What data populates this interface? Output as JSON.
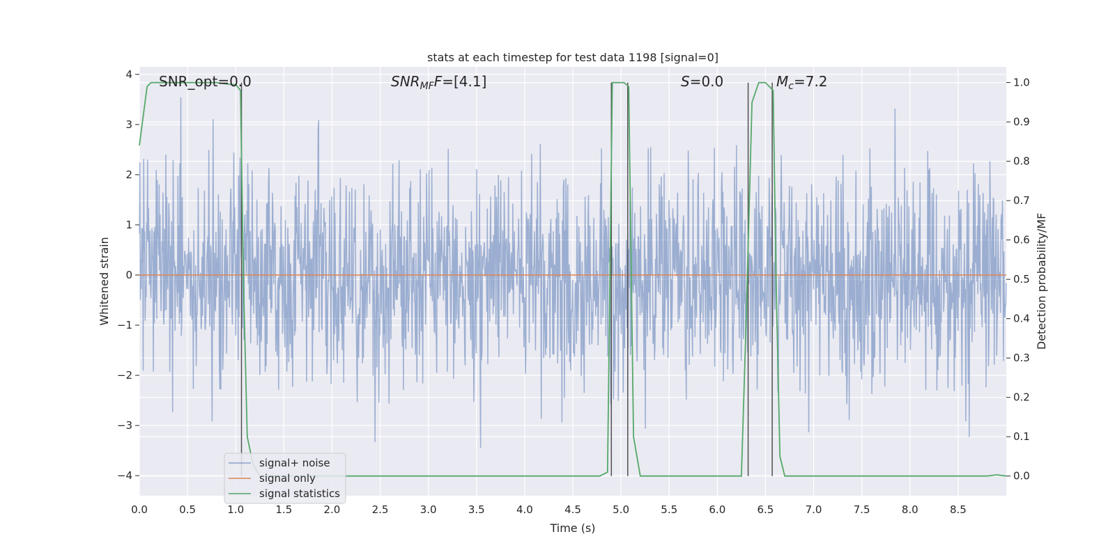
{
  "chart_data": {
    "type": "line",
    "title": "stats at each timestep for test data 1198 [signal=0]",
    "xlabel": "Time (s)",
    "ylabel_left": "Whitened strain",
    "ylabel_right": "Detection probability/MF",
    "xlim": [
      0.0,
      9.0
    ],
    "ylim_left": [
      -4.4,
      4.15
    ],
    "ylim_right": [
      -0.05,
      1.04
    ],
    "x_ticks": [
      0.0,
      0.5,
      1.0,
      1.5,
      2.0,
      2.5,
      3.0,
      3.5,
      4.0,
      4.5,
      5.0,
      5.5,
      6.0,
      6.5,
      7.0,
      7.5,
      8.0,
      8.5
    ],
    "x_tick_labels": [
      "0.0",
      "0.5",
      "1.0",
      "1.5",
      "2.0",
      "2.5",
      "3.0",
      "3.5",
      "4.0",
      "4.5",
      "5.0",
      "5.5",
      "6.0",
      "6.5",
      "7.0",
      "7.5",
      "8.0",
      "8.5"
    ],
    "y_left_ticks": [
      -4,
      -3,
      -2,
      -1,
      0,
      1,
      2,
      3,
      4
    ],
    "y_left_tick_labels": [
      "−4",
      "−3",
      "−2",
      "−1",
      "0",
      "1",
      "2",
      "3",
      "4"
    ],
    "y_right_ticks": [
      0.0,
      0.1,
      0.2,
      0.3,
      0.4,
      0.5,
      0.6,
      0.7,
      0.8,
      0.9,
      1.0
    ],
    "y_right_tick_labels": [
      "0.0",
      "0.1",
      "0.2",
      "0.3",
      "0.4",
      "0.5",
      "0.6",
      "0.7",
      "0.8",
      "0.9",
      "1.0"
    ],
    "grid": true,
    "legend_position": "lower-left",
    "annotations": {
      "snr_opt": "SNR_opt=0.0",
      "snr_mf_base": "SNR",
      "snr_mf_sub": "MF",
      "snr_mf_rest": "=[4.1]",
      "s_base": "S",
      "s_rest": "=0.0",
      "mc_base": "M",
      "mc_sub": "c",
      "mc_rest": "=7.2"
    },
    "series": [
      {
        "name": "signal+ noise",
        "axis": "left",
        "color": "#4c72b0",
        "style": "dense noise, roughly Gaussian, spikes reaching about ±3.5",
        "n_samples": 1800,
        "amplitude_scale": 1.0
      },
      {
        "name": "signal only",
        "axis": "left",
        "color": "#dd8452",
        "x": [
          0.0,
          9.0
        ],
        "y": [
          0.0,
          0.0
        ]
      },
      {
        "name": "signal statistics",
        "axis": "right",
        "color": "#55a868",
        "x": [
          0.0,
          0.08,
          0.12,
          0.2,
          0.5,
          0.8,
          0.95,
          1.0,
          1.05,
          1.08,
          1.12,
          1.18,
          1.25,
          1.5,
          4.5,
          4.78,
          4.86,
          4.91,
          4.95,
          5.03,
          5.08,
          5.13,
          5.2,
          5.5,
          6.0,
          6.25,
          6.3,
          6.36,
          6.43,
          6.5,
          6.58,
          6.61,
          6.65,
          6.7,
          7.0,
          8.5,
          8.8,
          8.9,
          9.0
        ],
        "y": [
          0.84,
          0.99,
          1.0,
          1.0,
          1.0,
          1.0,
          0.995,
          0.995,
          0.98,
          0.5,
          0.1,
          0.03,
          0.0,
          0.0,
          0.0,
          0.0,
          0.01,
          1.0,
          1.0,
          1.0,
          0.99,
          0.1,
          0.0,
          0.0,
          0.0,
          0.0,
          0.4,
          0.95,
          1.0,
          1.0,
          0.98,
          0.5,
          0.05,
          0.0,
          0.0,
          0.0,
          0.0,
          0.003,
          0.0
        ]
      }
    ],
    "vertical_markers": {
      "color": "#505050",
      "x": [
        1.06,
        4.9,
        5.07,
        6.32,
        6.57
      ],
      "y_right_top": 1.0,
      "y_right_bottom": 0.0
    }
  }
}
